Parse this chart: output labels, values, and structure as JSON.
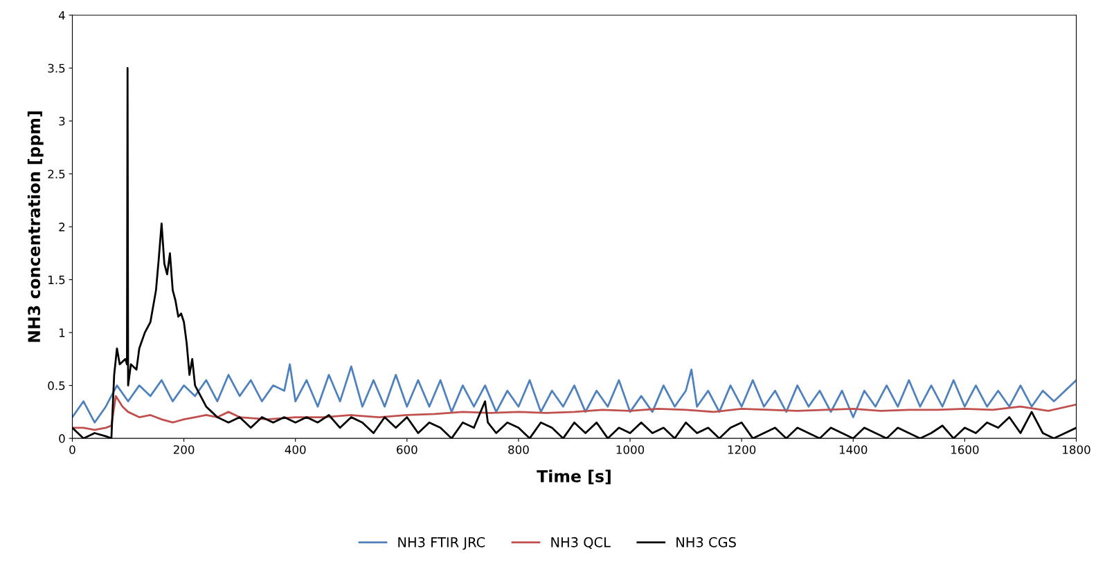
{
  "chart_data": {
    "type": "line",
    "xlabel": "Time [s]",
    "ylabel": "NH3 concentration [ppm]",
    "xlim": [
      0,
      1800
    ],
    "xticks": [
      0,
      200,
      400,
      600,
      800,
      1000,
      1200,
      1400,
      1600,
      1800
    ],
    "ylim": [
      0,
      4
    ],
    "yticks": [
      0,
      0.5,
      1,
      1.5,
      2,
      2.5,
      3,
      3.5,
      4
    ],
    "grid": false,
    "legend": "bottom",
    "marker": "none",
    "line_style": "solid",
    "series": [
      {
        "name": "NH3 FTIR JRC",
        "color": "#4f81bd",
        "x": [
          0,
          20,
          40,
          60,
          80,
          100,
          120,
          140,
          160,
          180,
          200,
          220,
          240,
          260,
          280,
          300,
          320,
          340,
          360,
          380,
          390,
          400,
          420,
          440,
          460,
          480,
          500,
          520,
          540,
          560,
          580,
          600,
          620,
          640,
          660,
          680,
          700,
          720,
          740,
          760,
          780,
          800,
          820,
          840,
          860,
          880,
          900,
          920,
          940,
          960,
          980,
          1000,
          1020,
          1040,
          1060,
          1080,
          1100,
          1110,
          1120,
          1140,
          1160,
          1180,
          1200,
          1220,
          1240,
          1260,
          1280,
          1300,
          1320,
          1340,
          1360,
          1380,
          1400,
          1420,
          1440,
          1460,
          1480,
          1500,
          1520,
          1540,
          1560,
          1580,
          1600,
          1620,
          1640,
          1660,
          1680,
          1700,
          1720,
          1740,
          1760,
          1780,
          1800
        ],
        "values": [
          0.2,
          0.35,
          0.15,
          0.3,
          0.5,
          0.35,
          0.5,
          0.4,
          0.55,
          0.35,
          0.5,
          0.4,
          0.55,
          0.35,
          0.6,
          0.4,
          0.55,
          0.35,
          0.5,
          0.45,
          0.7,
          0.35,
          0.55,
          0.3,
          0.6,
          0.35,
          0.68,
          0.3,
          0.55,
          0.3,
          0.6,
          0.3,
          0.55,
          0.3,
          0.55,
          0.25,
          0.5,
          0.3,
          0.5,
          0.25,
          0.45,
          0.3,
          0.55,
          0.25,
          0.45,
          0.3,
          0.5,
          0.25,
          0.45,
          0.3,
          0.55,
          0.25,
          0.4,
          0.25,
          0.5,
          0.3,
          0.45,
          0.65,
          0.3,
          0.45,
          0.25,
          0.5,
          0.3,
          0.55,
          0.3,
          0.45,
          0.25,
          0.5,
          0.3,
          0.45,
          0.25,
          0.45,
          0.2,
          0.45,
          0.3,
          0.5,
          0.3,
          0.55,
          0.3,
          0.5,
          0.3,
          0.55,
          0.3,
          0.5,
          0.3,
          0.45,
          0.3,
          0.5,
          0.3,
          0.45,
          0.35,
          0.45,
          0.55
        ]
      },
      {
        "name": "NH3 QCL",
        "color": "#c0504d",
        "x": [
          0,
          20,
          40,
          60,
          70,
          78,
          90,
          100,
          120,
          140,
          160,
          180,
          200,
          220,
          240,
          260,
          280,
          300,
          350,
          400,
          450,
          500,
          550,
          600,
          650,
          700,
          750,
          800,
          850,
          900,
          950,
          1000,
          1050,
          1100,
          1150,
          1200,
          1250,
          1300,
          1350,
          1400,
          1450,
          1500,
          1550,
          1600,
          1650,
          1700,
          1750,
          1800
        ],
        "values": [
          0.1,
          0.1,
          0.08,
          0.1,
          0.12,
          0.4,
          0.3,
          0.25,
          0.2,
          0.22,
          0.18,
          0.15,
          0.18,
          0.2,
          0.22,
          0.2,
          0.25,
          0.2,
          0.18,
          0.2,
          0.2,
          0.22,
          0.2,
          0.22,
          0.23,
          0.25,
          0.24,
          0.25,
          0.24,
          0.25,
          0.27,
          0.26,
          0.28,
          0.27,
          0.25,
          0.28,
          0.27,
          0.26,
          0.27,
          0.28,
          0.26,
          0.27,
          0.27,
          0.28,
          0.27,
          0.3,
          0.26,
          0.32
        ]
      },
      {
        "name": "NH3 CGS",
        "color": "#000000",
        "x": [
          0,
          10,
          20,
          40,
          60,
          70,
          75,
          80,
          85,
          95,
          98,
          99,
          100,
          105,
          115,
          120,
          130,
          140,
          150,
          155,
          160,
          165,
          170,
          175,
          180,
          185,
          190,
          195,
          200,
          205,
          210,
          215,
          220,
          230,
          240,
          250,
          260,
          280,
          300,
          320,
          340,
          360,
          380,
          400,
          420,
          440,
          460,
          480,
          500,
          520,
          540,
          560,
          580,
          600,
          620,
          640,
          660,
          680,
          700,
          720,
          740,
          745,
          760,
          780,
          800,
          820,
          840,
          860,
          880,
          900,
          920,
          940,
          960,
          980,
          1000,
          1020,
          1040,
          1060,
          1080,
          1100,
          1120,
          1140,
          1160,
          1180,
          1200,
          1220,
          1240,
          1260,
          1280,
          1300,
          1320,
          1340,
          1360,
          1380,
          1400,
          1420,
          1440,
          1460,
          1480,
          1500,
          1520,
          1540,
          1560,
          1580,
          1600,
          1620,
          1640,
          1660,
          1680,
          1700,
          1720,
          1740,
          1760,
          1780,
          1800
        ],
        "values": [
          0.1,
          0.05,
          0.0,
          0.05,
          0.02,
          0.0,
          0.6,
          0.85,
          0.7,
          0.75,
          0.7,
          3.5,
          0.5,
          0.7,
          0.65,
          0.85,
          1.0,
          1.1,
          1.4,
          1.7,
          2.03,
          1.65,
          1.55,
          1.75,
          1.4,
          1.3,
          1.15,
          1.18,
          1.1,
          0.9,
          0.6,
          0.75,
          0.5,
          0.4,
          0.3,
          0.25,
          0.2,
          0.15,
          0.2,
          0.1,
          0.2,
          0.15,
          0.2,
          0.15,
          0.2,
          0.15,
          0.22,
          0.1,
          0.2,
          0.15,
          0.05,
          0.2,
          0.1,
          0.2,
          0.05,
          0.15,
          0.1,
          0.0,
          0.15,
          0.1,
          0.35,
          0.15,
          0.05,
          0.15,
          0.1,
          0.0,
          0.15,
          0.1,
          0.0,
          0.15,
          0.05,
          0.15,
          0.0,
          0.1,
          0.05,
          0.15,
          0.05,
          0.1,
          0.0,
          0.15,
          0.05,
          0.1,
          0.0,
          0.1,
          0.15,
          0.0,
          0.05,
          0.1,
          0.0,
          0.1,
          0.05,
          0.0,
          0.1,
          0.05,
          0.0,
          0.1,
          0.05,
          0.0,
          0.1,
          0.05,
          0.0,
          0.05,
          0.12,
          0.0,
          0.1,
          0.05,
          0.15,
          0.1,
          0.2,
          0.05,
          0.25,
          0.05,
          0.0,
          0.05,
          0.1
        ]
      }
    ]
  }
}
